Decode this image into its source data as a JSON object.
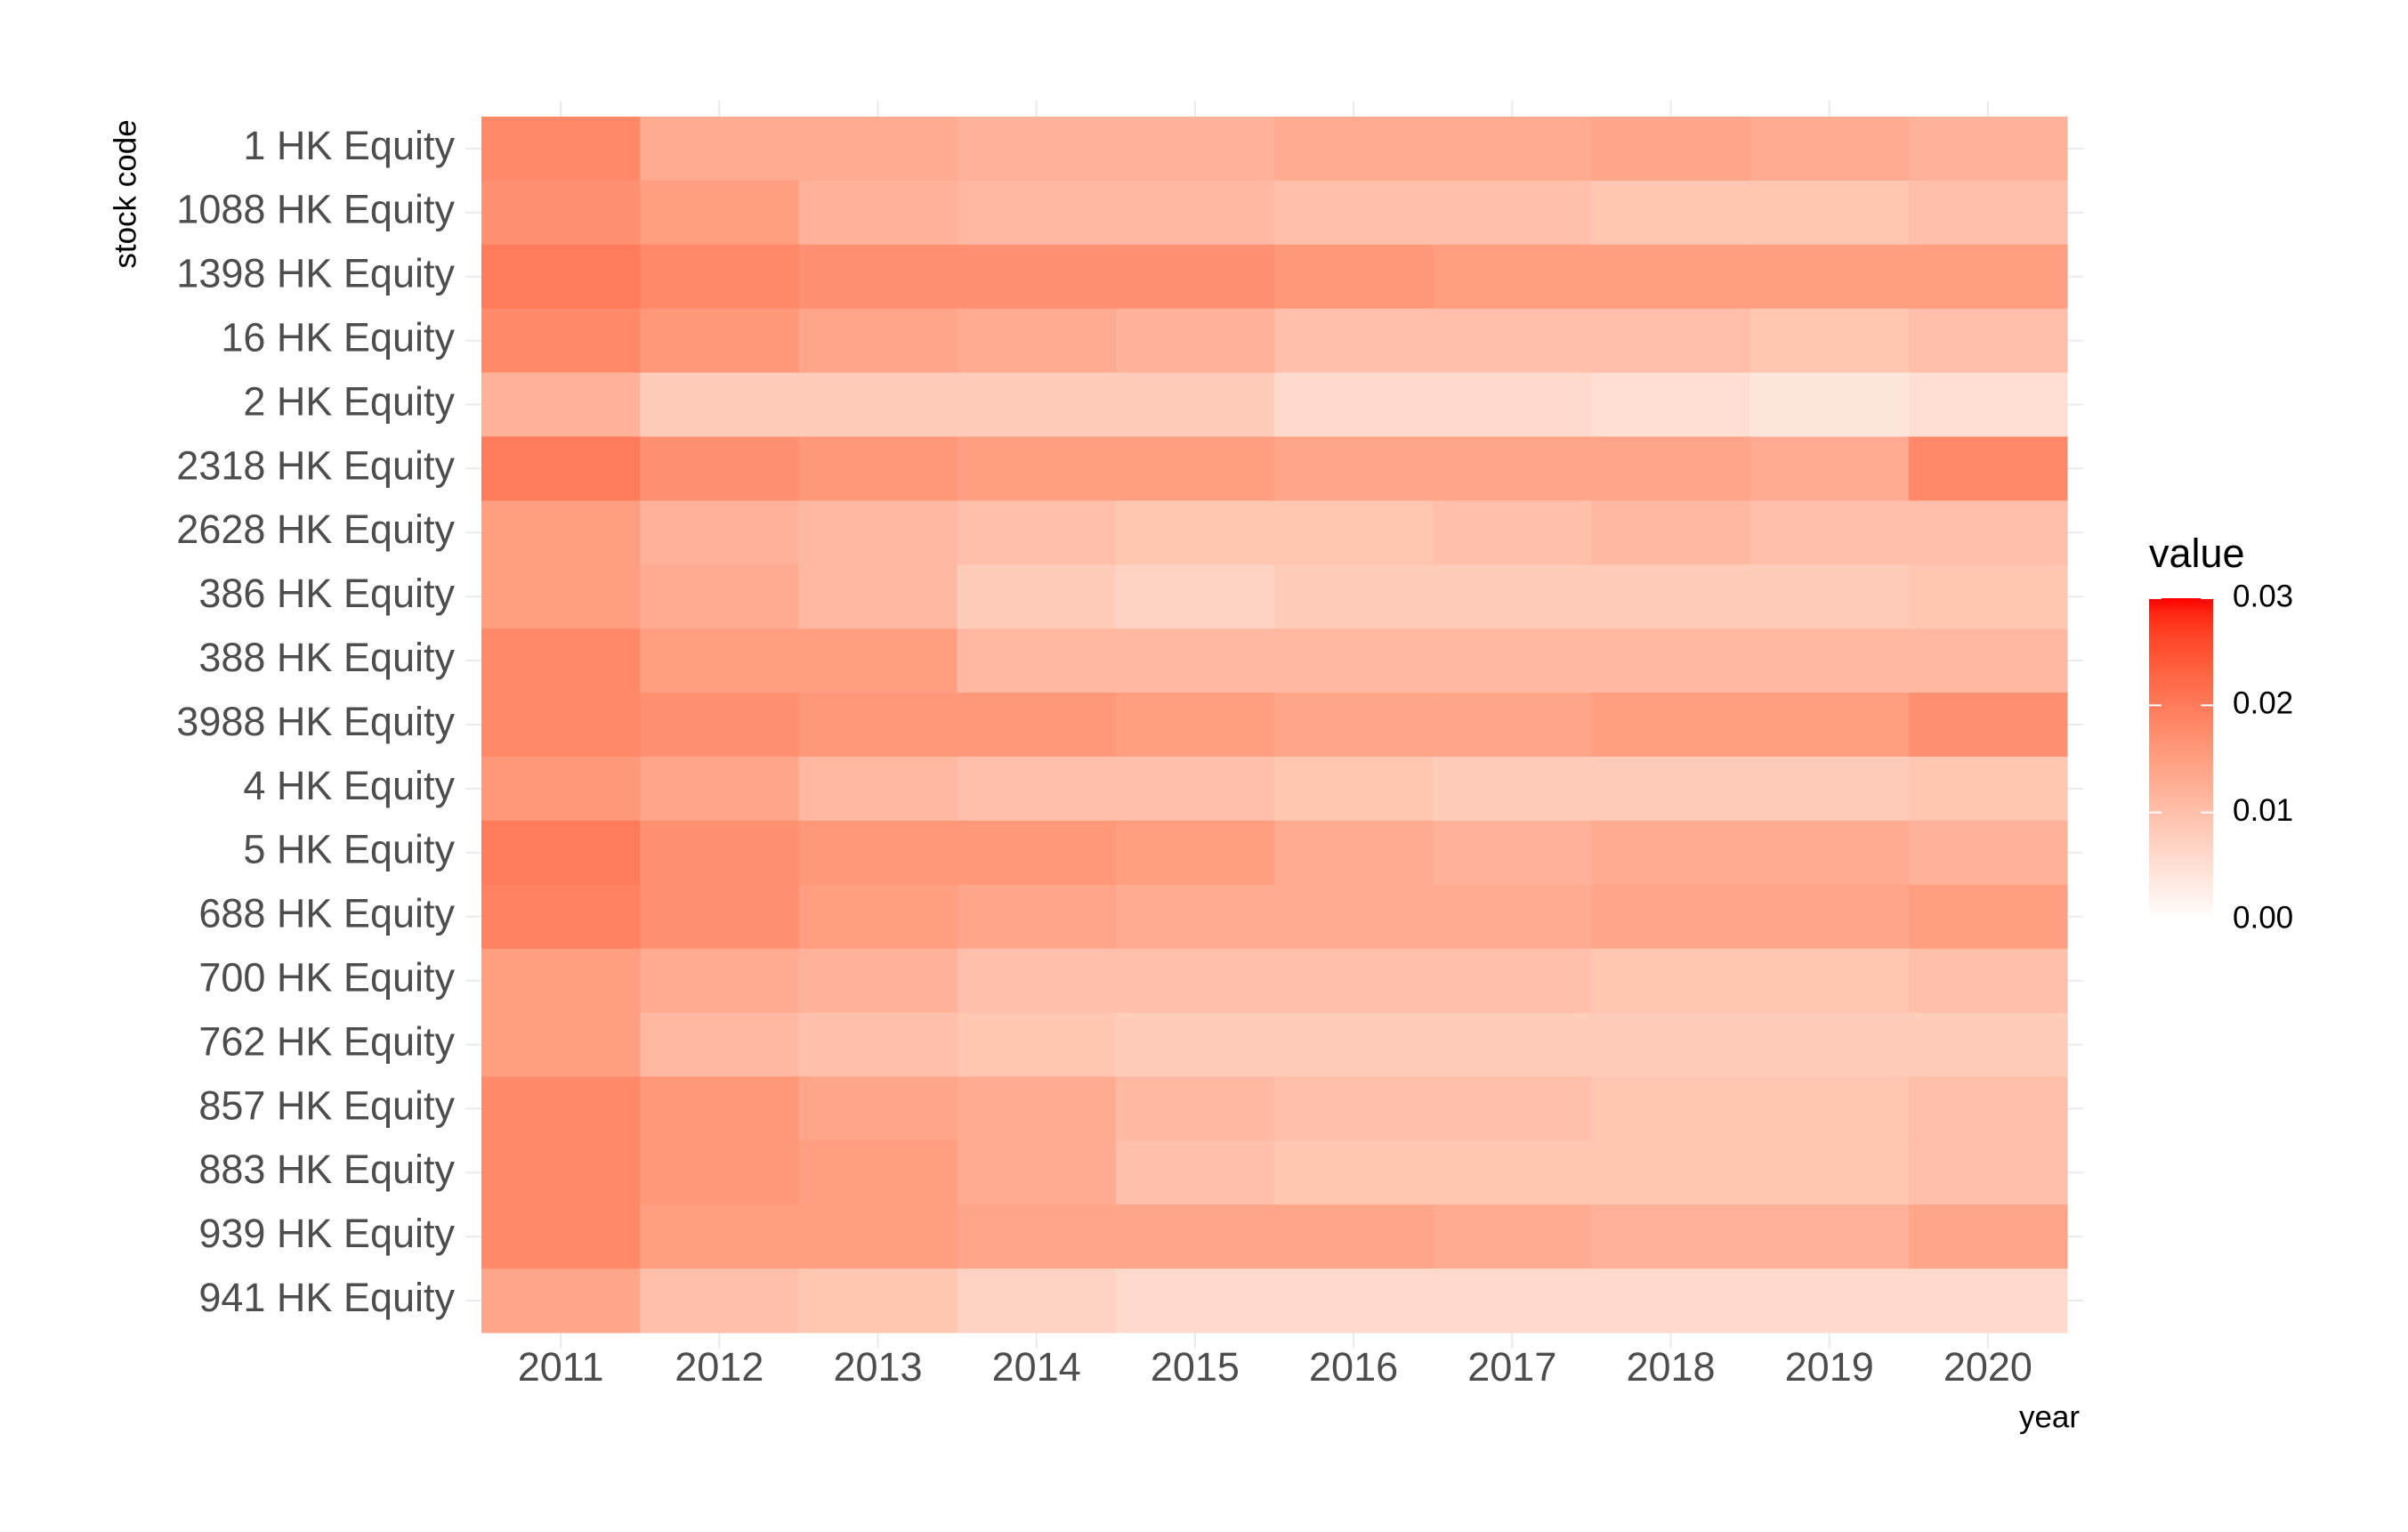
{
  "chart_data": {
    "type": "heatmap",
    "x_label": "year",
    "y_label": "stock code",
    "x": [
      "2011",
      "2012",
      "2013",
      "2014",
      "2015",
      "2016",
      "2017",
      "2018",
      "2019",
      "2020"
    ],
    "categories": [
      "1 HK Equity",
      "1088 HK Equity",
      "1398 HK Equity",
      "16 HK Equity",
      "2 HK Equity",
      "2318 HK Equity",
      "2628 HK Equity",
      "386 HK Equity",
      "388 HK Equity",
      "3988 HK Equity",
      "4 HK Equity",
      "5 HK Equity",
      "688 HK Equity",
      "700 HK Equity",
      "762 HK Equity",
      "857 HK Equity",
      "883 HK Equity",
      "939 HK Equity",
      "941 HK Equity"
    ],
    "values": [
      [
        0.018,
        0.013,
        0.013,
        0.012,
        0.012,
        0.013,
        0.013,
        0.014,
        0.013,
        0.012
      ],
      [
        0.017,
        0.015,
        0.012,
        0.011,
        0.011,
        0.01,
        0.01,
        0.009,
        0.009,
        0.01
      ],
      [
        0.02,
        0.018,
        0.017,
        0.017,
        0.017,
        0.016,
        0.015,
        0.015,
        0.015,
        0.015
      ],
      [
        0.018,
        0.016,
        0.014,
        0.013,
        0.012,
        0.01,
        0.01,
        0.01,
        0.009,
        0.01
      ],
      [
        0.012,
        0.008,
        0.008,
        0.008,
        0.008,
        0.006,
        0.006,
        0.005,
        0.004,
        0.005
      ],
      [
        0.02,
        0.017,
        0.016,
        0.015,
        0.015,
        0.014,
        0.014,
        0.014,
        0.013,
        0.018
      ],
      [
        0.015,
        0.012,
        0.011,
        0.01,
        0.009,
        0.009,
        0.01,
        0.011,
        0.01,
        0.01
      ],
      [
        0.015,
        0.013,
        0.011,
        0.008,
        0.007,
        0.008,
        0.008,
        0.008,
        0.008,
        0.009
      ],
      [
        0.018,
        0.015,
        0.015,
        0.011,
        0.011,
        0.011,
        0.011,
        0.011,
        0.011,
        0.011
      ],
      [
        0.018,
        0.017,
        0.016,
        0.016,
        0.015,
        0.014,
        0.014,
        0.015,
        0.015,
        0.017
      ],
      [
        0.016,
        0.014,
        0.011,
        0.01,
        0.01,
        0.009,
        0.008,
        0.008,
        0.008,
        0.009
      ],
      [
        0.02,
        0.017,
        0.016,
        0.016,
        0.015,
        0.013,
        0.012,
        0.013,
        0.013,
        0.012
      ],
      [
        0.019,
        0.017,
        0.015,
        0.014,
        0.013,
        0.013,
        0.013,
        0.014,
        0.014,
        0.015
      ],
      [
        0.015,
        0.013,
        0.012,
        0.01,
        0.01,
        0.01,
        0.01,
        0.009,
        0.009,
        0.01
      ],
      [
        0.015,
        0.011,
        0.01,
        0.009,
        0.008,
        0.008,
        0.008,
        0.008,
        0.008,
        0.008
      ],
      [
        0.018,
        0.016,
        0.014,
        0.013,
        0.011,
        0.01,
        0.01,
        0.009,
        0.009,
        0.01
      ],
      [
        0.018,
        0.016,
        0.015,
        0.013,
        0.01,
        0.009,
        0.009,
        0.009,
        0.009,
        0.01
      ],
      [
        0.018,
        0.015,
        0.015,
        0.014,
        0.014,
        0.014,
        0.013,
        0.012,
        0.012,
        0.014
      ],
      [
        0.014,
        0.01,
        0.009,
        0.007,
        0.006,
        0.006,
        0.006,
        0.006,
        0.006,
        0.006
      ]
    ],
    "legend_title": "value",
    "colorlim": [
      0,
      0.03
    ],
    "colorticks": [
      {
        "value": 0,
        "label": "0.00"
      },
      {
        "value": 0.01,
        "label": "0.01"
      },
      {
        "value": 0.02,
        "label": "0.02"
      },
      {
        "value": 0.03,
        "label": "0.03"
      }
    ],
    "low_color": "#ffffff",
    "high_color": "#ff0000",
    "grid": true
  }
}
